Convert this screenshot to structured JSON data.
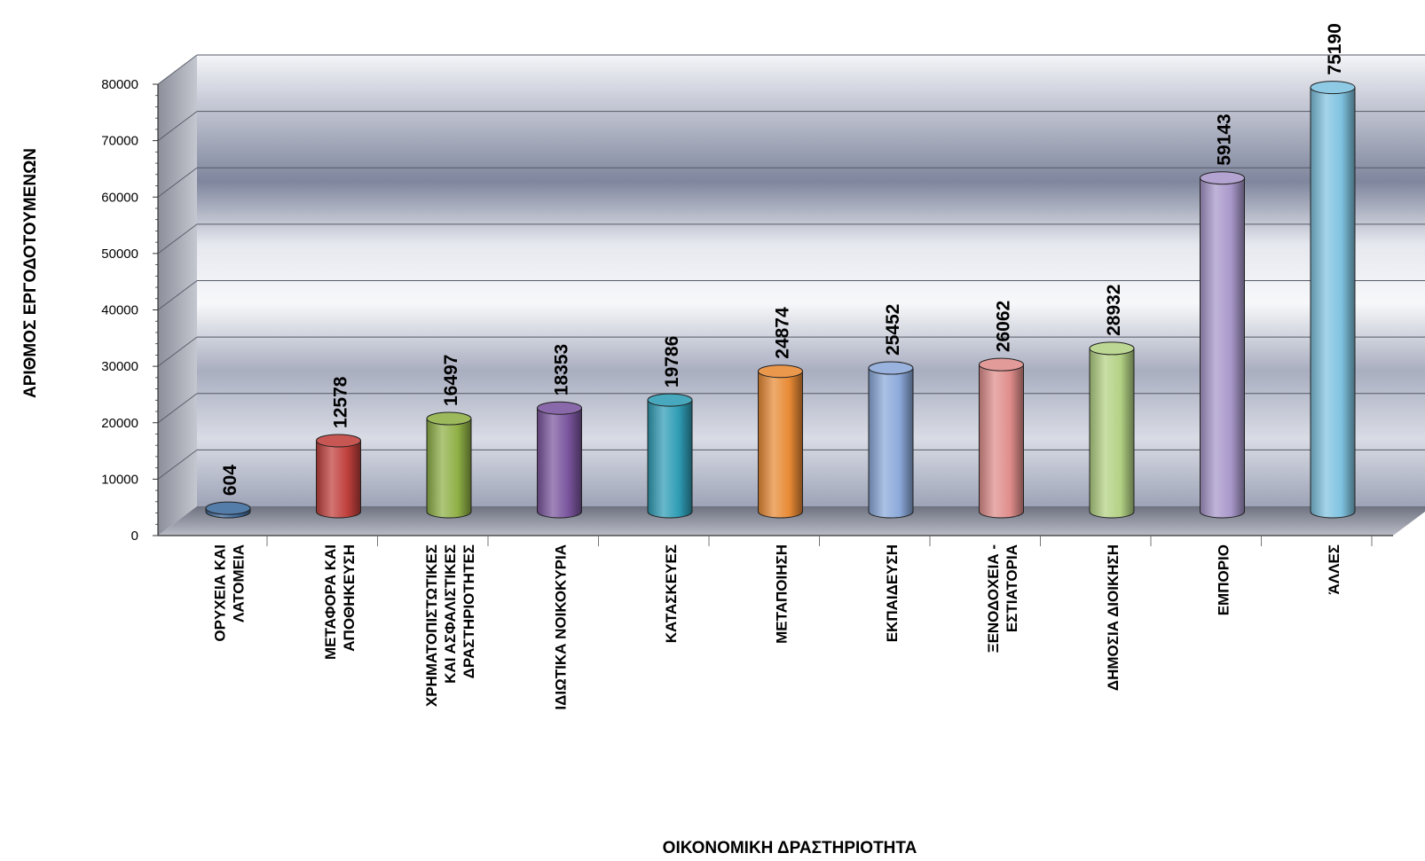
{
  "chart_data": {
    "type": "bar",
    "title": "",
    "xlabel": "ΟΙΚΟΝΟΜΙΚΗ ΔΡΑΣΤΗΡΙΟΤΗΤΑ",
    "ylabel": "ΑΡΙΘΜΟΣ ΕΡΓΟΔΟΤΟΥΜΕΝΩΝ",
    "ylim": [
      0,
      80000
    ],
    "y_ticks": [
      0,
      10000,
      20000,
      30000,
      40000,
      50000,
      60000,
      70000,
      80000
    ],
    "grid": true,
    "legend": "none",
    "categories": [
      "ΟΡΥΧΕΙΑ ΚΑΙ ΛΑΤΟΜΕΙΑ",
      "ΜΕΤΑΦΟΡΑ ΚΑΙ ΑΠΟΘΗΚΕΥΣΗ",
      "ΧΡΗΜΑΤΟΠΙΣΤΩΤΙΚΕΣ ΚΑΙ ΑΣΦΑΛΙΣΤΙΚΕΣ ΔΡΑΣΤΗΡΙΟΤΗΤΕΣ",
      "ΙΔΙΩΤΙΚΑ ΝΟΙΚΟΚΥΡΙΑ",
      "ΚΑΤΑΣΚΕΥΕΣ",
      "ΜΕΤΑΠΟΙΗΣΗ",
      "ΕΚΠΑΙΔΕΥΣΗ",
      "ΞΕΝΟΔΟΧΕΙΑ - ΕΣΤΙΑΤΟΡΙΑ",
      "ΔΗΜΟΣΙΑ ΔΙΟΙΚΗΣΗ",
      "ΕΜΠΟΡΙΟ",
      "ΆΛΛΕΣ"
    ],
    "category_lines": [
      [
        "ΟΡΥΧΕΙΑ ΚΑΙ",
        "ΛΑΤΟΜΕΙΑ"
      ],
      [
        "ΜΕΤΑΦΟΡΑ ΚΑΙ",
        "ΑΠΟΘΗΚΕΥΣΗ"
      ],
      [
        "ΧΡΗΜΑΤΟΠΙΣΤΩΤΙΚΕΣ",
        "ΚΑΙ ΑΣΦΑΛΙΣΤΙΚΕΣ",
        "ΔΡΑΣΤΗΡΙΟΤΗΤΕΣ"
      ],
      [
        "ΙΔΙΩΤΙΚΑ ΝΟΙΚΟΚΥΡΙΑ"
      ],
      [
        "ΚΑΤΑΣΚΕΥΕΣ"
      ],
      [
        "ΜΕΤΑΠΟΙΗΣΗ"
      ],
      [
        "ΕΚΠΑΙΔΕΥΣΗ"
      ],
      [
        "ΞΕΝΟΔΟΧΕΙΑ -",
        "ΕΣΤΙΑΤΟΡΙΑ"
      ],
      [
        "ΔΗΜΟΣΙΑ ΔΙΟΙΚΗΣΗ"
      ],
      [
        "ΕΜΠΟΡΙΟ"
      ],
      [
        "ΆΛΛΕΣ"
      ]
    ],
    "values": [
      604,
      12578,
      16497,
      18353,
      19786,
      24874,
      25452,
      26062,
      28932,
      59143,
      75190
    ],
    "colors": [
      "#3d6b9e",
      "#c0403c",
      "#8fb046",
      "#7a559e",
      "#2f9db5",
      "#e88a35",
      "#8ba9da",
      "#df8d8b",
      "#b3d184",
      "#a897ca",
      "#7fc3e0"
    ]
  }
}
